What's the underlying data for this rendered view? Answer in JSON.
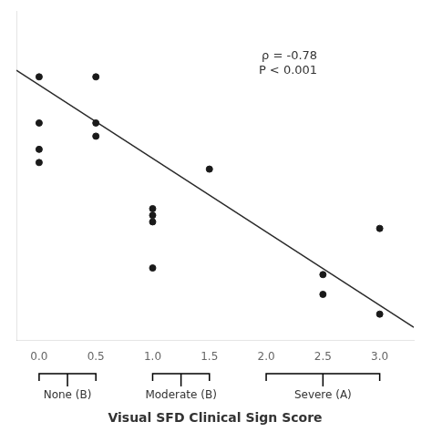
{
  "chart_data": {
    "type": "scatter",
    "xlabel": "Visual SFD Clinical Sign Score",
    "series": [
      {
        "type": "scatter",
        "x": [
          0.0,
          0.0,
          0.0,
          0.0,
          0.5,
          0.5,
          0.5,
          1.0,
          1.0,
          1.0,
          1.0,
          1.5,
          2.5,
          2.5,
          3.0,
          3.0
        ],
        "values": [
          5.5,
          4.8,
          4.4,
          4.2,
          5.5,
          4.8,
          4.6,
          3.5,
          3.4,
          3.3,
          2.6,
          4.1,
          2.5,
          2.2,
          1.9,
          3.2
        ],
        "color": "#1a1a1a"
      },
      {
        "type": "line",
        "x": [
          -0.2,
          3.3
        ],
        "values": [
          5.6,
          1.7
        ],
        "color": "#2a2a2a"
      }
    ],
    "annotations": [
      {
        "text": "ρ = -0.78\nP < 0.001",
        "x": 2.45,
        "y": 5.9
      }
    ],
    "brackets": [
      {
        "label": "None (B)",
        "x_start": 0.0,
        "x_end": 0.5
      },
      {
        "label": "Moderate (B)",
        "x_start": 1.0,
        "x_end": 1.5
      },
      {
        "label": "Severe (A)",
        "x_start": 2.0,
        "x_end": 3.0
      }
    ],
    "xlim": [
      -0.2,
      3.3
    ],
    "ylim": [
      1.5,
      6.5
    ],
    "xticks": [
      {
        "value": 0.0,
        "label": "0.0"
      },
      {
        "value": 0.5,
        "label": "0.5"
      },
      {
        "value": 1.0,
        "label": "1.0"
      },
      {
        "value": 1.5,
        "label": "1.5"
      },
      {
        "value": 2.0,
        "label": "2.0"
      },
      {
        "value": 2.5,
        "label": "2.5"
      },
      {
        "value": 3.0,
        "label": "3.0"
      }
    ],
    "tick_labels": "x",
    "grid": false
  }
}
